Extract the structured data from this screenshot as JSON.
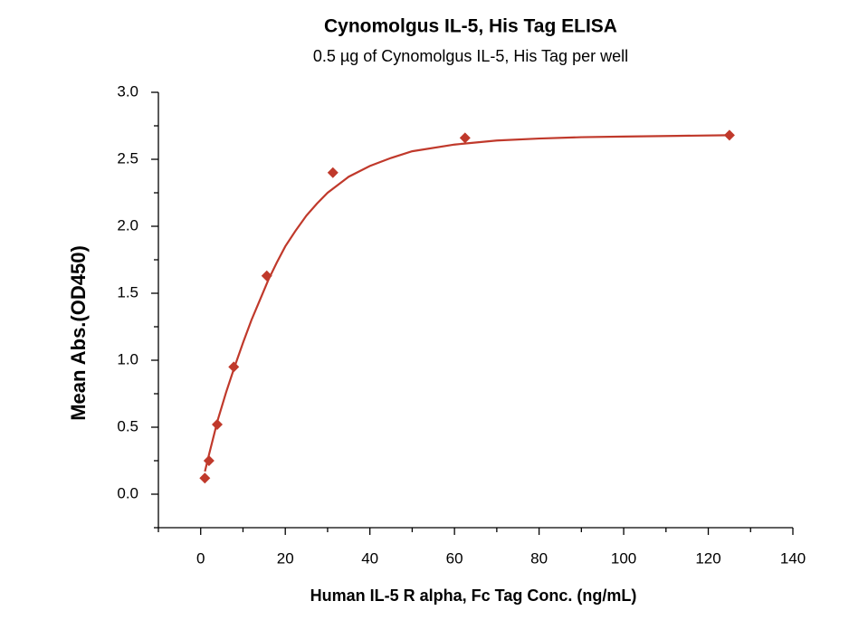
{
  "chart_data": {
    "type": "scatter",
    "title": "Cynomolgus IL-5, His Tag ELISA",
    "subtitle": "0.5 µg of Cynomolgus IL-5, His Tag per well",
    "x_label": "Human IL-5 R alpha, Fc Tag Conc. (ng/mL)",
    "y_label": "Mean Abs.(OD450)",
    "x": [
      0.977,
      1.953,
      3.906,
      7.8125,
      15.625,
      31.25,
      62.5,
      125
    ],
    "series": [
      {
        "color": "#c0392b",
        "marker": "diamond",
        "values": [
          0.12,
          0.25,
          0.52,
          0.95,
          1.63,
          2.4,
          2.66,
          2.68
        ]
      }
    ],
    "fit": {
      "color": "#c0392b",
      "x": [
        1,
        2,
        4,
        6,
        8,
        10,
        12,
        14,
        16,
        18,
        20,
        22.5,
        25,
        27.5,
        30,
        35,
        40,
        45,
        50,
        60,
        70,
        80,
        90,
        100,
        112.5,
        125
      ],
      "values": [
        0.17,
        0.3,
        0.55,
        0.76,
        0.95,
        1.13,
        1.3,
        1.45,
        1.6,
        1.73,
        1.85,
        1.97,
        2.08,
        2.17,
        2.25,
        2.37,
        2.45,
        2.51,
        2.56,
        2.61,
        2.64,
        2.655,
        2.665,
        2.67,
        2.675,
        2.68
      ]
    },
    "xlim": [
      -10,
      140
    ],
    "ylim": [
      -0.25,
      3.0
    ],
    "xticks": [
      0,
      20,
      40,
      60,
      80,
      100,
      120,
      140
    ],
    "xminorticks": [
      -10,
      10,
      30,
      50,
      70,
      90,
      110,
      130
    ],
    "yticks": [
      {
        "value": 0,
        "label": "0.0"
      },
      {
        "value": 0.5,
        "label": "0.5"
      },
      {
        "value": 1,
        "label": "1.0"
      },
      {
        "value": 1.5,
        "label": "1.5"
      },
      {
        "value": 2,
        "label": "2.0"
      },
      {
        "value": 2.5,
        "label": "2.5"
      },
      {
        "value": 3,
        "label": "3.0"
      }
    ],
    "yminorticks": [
      -0.25,
      0.25,
      0.75,
      1.25,
      1.75,
      2.25,
      2.75
    ],
    "grid": false
  }
}
